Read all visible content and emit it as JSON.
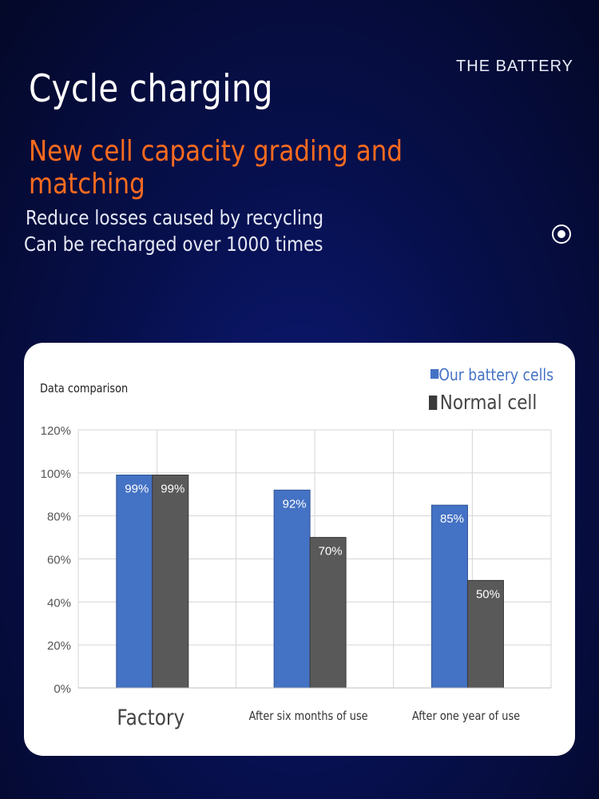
{
  "header": {
    "brand": "THE BATTERY",
    "title": "Cycle charging",
    "subtitle": "New cell capacity grading and matching",
    "desc_line1": "Reduce losses caused by recycling",
    "desc_line2": "Can be recharged over 1000 times"
  },
  "colors": {
    "accent_orange": "#ff6b1e",
    "series_blue": "#4472c4",
    "series_gray": "#595959"
  },
  "chart_data": {
    "type": "bar",
    "title": "Data comparison",
    "categories": [
      "Factory",
      "After six months of use",
      "After one year of use"
    ],
    "series": [
      {
        "name": "Our battery cells",
        "values": [
          99,
          92,
          85
        ],
        "labels": [
          "99%",
          "92%",
          "85%"
        ],
        "color": "#4472c4"
      },
      {
        "name": "Normal cell",
        "values": [
          99,
          70,
          50
        ],
        "labels": [
          "99%",
          "70%",
          "50%"
        ],
        "color": "#595959"
      }
    ],
    "yticks": [
      "0%",
      "20%",
      "40%",
      "60%",
      "80%",
      "100%",
      "120%"
    ],
    "ylim": [
      0,
      120
    ],
    "grid": true,
    "legend": "top-right"
  }
}
